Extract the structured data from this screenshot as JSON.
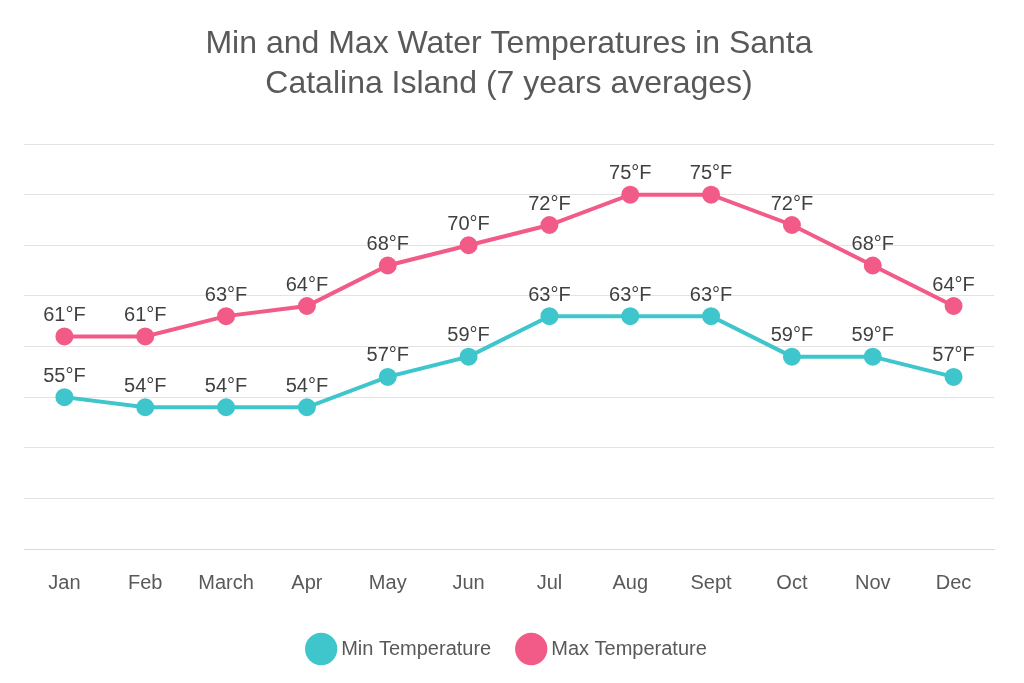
{
  "chart_data": {
    "type": "line",
    "title": "Min and Max Water Temperatures in Santa Catalina Island (7 years averages)",
    "categories": [
      "Jan",
      "Feb",
      "March",
      "Apr",
      "May",
      "Jun",
      "Jul",
      "Aug",
      "Sept",
      "Oct",
      "Nov",
      "Dec"
    ],
    "series": [
      {
        "name": "Min Temperature",
        "color": "#3ec6cc",
        "marker": "circle",
        "line_style": "solid",
        "values": [
          55,
          54,
          54,
          54,
          57,
          59,
          63,
          63,
          63,
          59,
          59,
          57
        ],
        "value_labels": [
          "55°F",
          "54°F",
          "54°F",
          "54°F",
          "57°F",
          "59°F",
          "63°F",
          "63°F",
          "63°F",
          "59°F",
          "59°F",
          "57°F"
        ]
      },
      {
        "name": "Max Temperature",
        "color": "#f25a87",
        "marker": "circle",
        "line_style": "solid",
        "values": [
          61,
          61,
          63,
          64,
          68,
          70,
          72,
          75,
          75,
          72,
          68,
          64
        ],
        "value_labels": [
          "61°F",
          "61°F",
          "63°F",
          "64°F",
          "68°F",
          "70°F",
          "72°F",
          "75°F",
          "75°F",
          "72°F",
          "68°F",
          "64°F"
        ]
      }
    ],
    "ylim": [
      40,
      80
    ],
    "yticks": [
      40,
      45,
      50,
      55,
      60,
      65,
      70,
      75,
      80
    ],
    "grid": true,
    "legend": "bottom",
    "data_labels": true,
    "tick_labels": "x"
  }
}
